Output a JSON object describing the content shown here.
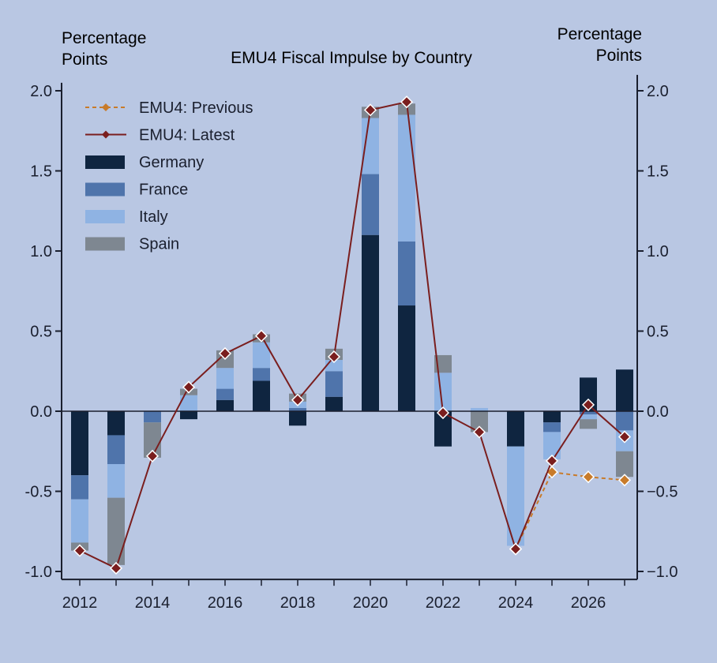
{
  "chart_data": {
    "type": "bar",
    "title": "EMU4 Fiscal Impulse by Country",
    "ylabel_left": [
      "Percentage",
      "Points"
    ],
    "ylabel_right": [
      "Percentage",
      "Points"
    ],
    "ylim": [
      -1.05,
      2.05
    ],
    "yticks": [
      "2.0",
      "1.5",
      "1.0",
      "0.5",
      "0.0",
      "-0.5",
      "-1.0"
    ],
    "ytick_values": [
      2.0,
      1.5,
      1.0,
      0.5,
      0.0,
      -0.5,
      -1.0
    ],
    "yticks_right": [
      "2.0",
      "1.5",
      "1.0",
      "0.5",
      "0.0",
      "−0.5",
      "−1.0"
    ],
    "x": [
      2012,
      2013,
      2014,
      2015,
      2016,
      2017,
      2018,
      2019,
      2020,
      2021,
      2022,
      2023,
      2024,
      2025,
      2026,
      2027
    ],
    "xticks": [
      "2012",
      "2014",
      "2016",
      "2018",
      "2020",
      "2022",
      "2024",
      "2026"
    ],
    "xtick_values": [
      2012,
      2014,
      2016,
      2018,
      2020,
      2022,
      2024,
      2026
    ],
    "stacked_series": [
      {
        "name": "Germany",
        "color": "#0f2540",
        "values": [
          -0.4,
          -0.15,
          0.0,
          -0.05,
          0.07,
          0.19,
          -0.09,
          0.09,
          1.1,
          0.66,
          -0.22,
          0.0,
          -0.22,
          -0.07,
          0.21,
          0.26
        ]
      },
      {
        "name": "France",
        "color": "#4f74ab",
        "values": [
          -0.15,
          -0.18,
          -0.07,
          0.0,
          0.07,
          0.08,
          0.02,
          0.16,
          0.38,
          0.4,
          0.0,
          0.0,
          0.0,
          -0.06,
          -0.02,
          -0.12
        ]
      },
      {
        "name": "Italy",
        "color": "#8fb3e3",
        "values": [
          -0.27,
          -0.21,
          0.0,
          0.1,
          0.13,
          0.16,
          0.04,
          0.07,
          0.35,
          0.79,
          0.24,
          0.02,
          -0.62,
          -0.17,
          -0.03,
          -0.13
        ]
      },
      {
        "name": "Spain",
        "color": "#7e8791",
        "values": [
          -0.05,
          -0.42,
          -0.22,
          0.04,
          0.11,
          0.05,
          0.05,
          0.07,
          0.07,
          0.07,
          0.11,
          -0.13,
          0.0,
          0.0,
          -0.06,
          -0.16
        ]
      }
    ],
    "line_series": [
      {
        "name": "EMU4: Previous",
        "color": "#c87b2a",
        "style": "dashed",
        "x": [
          2024,
          2025,
          2026,
          2027
        ],
        "values": [
          -0.86,
          -0.38,
          -0.41,
          -0.43
        ]
      },
      {
        "name": "EMU4: Latest",
        "color": "#7a1e1e",
        "style": "solid",
        "x": [
          2012,
          2013,
          2014,
          2015,
          2016,
          2017,
          2018,
          2019,
          2020,
          2021,
          2022,
          2023,
          2024,
          2025,
          2026,
          2027
        ],
        "values": [
          -0.87,
          -0.98,
          -0.28,
          0.15,
          0.36,
          0.47,
          0.07,
          0.34,
          1.88,
          1.93,
          -0.01,
          -0.13,
          -0.86,
          -0.31,
          0.04,
          -0.16
        ]
      }
    ],
    "legend_position": "top-left",
    "grid": false
  }
}
